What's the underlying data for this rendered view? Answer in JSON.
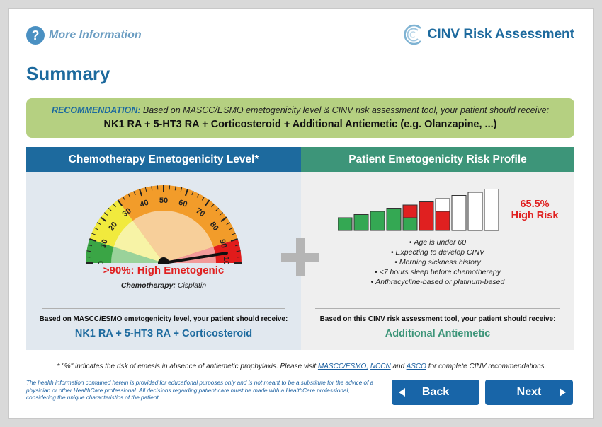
{
  "header": {
    "more_info_label": "More Information",
    "brand_title": "CINV Risk Assessment"
  },
  "page_title": "Summary",
  "recommendation": {
    "label": "RECOMMENDATION:",
    "intro": "Based on MASCC/ESMO emetogenicity level & CINV risk assessment tool, your patient should receive:",
    "regimen": "NK1 RA + 5-HT3 RA + Corticosteroid + Additional Antiemetic (e.g. Olanzapine, ...)"
  },
  "chemo_panel": {
    "title": "Chemotherapy Emetogenicity Level*",
    "gauge_ticks": [
      "0",
      "10",
      "20",
      "30",
      "40",
      "50",
      "60",
      "70",
      "80",
      "90",
      "100"
    ],
    "gauge_value": 95,
    "level_text": ">90%: High Emetogenic",
    "chemo_label": "Chemotherapy:",
    "chemo_value": "Cisplatin",
    "note": "Based on MASCC/ESMO emetogenicity level, your patient should receive:",
    "result": "NK1 RA + 5-HT3 RA + Corticosteroid"
  },
  "risk_panel": {
    "title": "Patient Emetogenicity Risk Profile",
    "risk_percent": "65.5%",
    "risk_label": "High Risk",
    "bar_count": 10,
    "bar_colors": [
      "#34a853",
      "#e02020",
      "#ffffff"
    ],
    "factors": [
      "Age is under 60",
      "Expecting to develop CINV",
      "Morning sickness history",
      "<7 hours sleep before chemotherapy",
      "Anthracycline-based or platinum-based"
    ],
    "note": "Based on this CINV risk assessment tool, your patient should receive:",
    "result": "Additional Antiemetic"
  },
  "footnote": {
    "prefix": "* \"%\" indicates the risk of emesis in absence of antiemetic prophylaxis.  Please visit ",
    "link_mascc": "MASCC/ESMO,",
    "link_nccn": "NCCN",
    "and": " and ",
    "link_asco": "ASCO",
    "suffix": " for complete CINV recommendations."
  },
  "disclaimer": "The health information contained herein is provided for educational purposes only and is not meant to be a substitute for the advice of a physician or other HealthCare professional. All decisions regarding patient care must be made with a HealthCare professional, considering the unique characteristics of the patient.",
  "nav": {
    "back_label": "Back",
    "next_label": "Next"
  },
  "colors": {
    "brand_blue": "#1d6a9e",
    "accent_green": "#3d9579",
    "recommendation_bg": "#b5d081",
    "high_risk_red": "#e02020"
  },
  "icons": [
    "question-icon",
    "brand-logo-icon",
    "plus-icon",
    "arrow-left-icon",
    "arrow-right-icon"
  ]
}
